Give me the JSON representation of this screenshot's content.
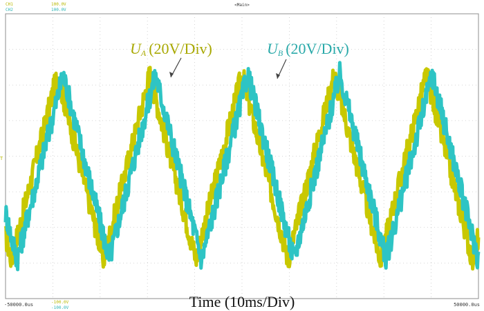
{
  "header": {
    "ch1_label": "CH1",
    "ch2_label": "CH2",
    "ch1_scale": "100.0V",
    "ch2_scale": "100.0V",
    "main_label": "<Main>"
  },
  "footer": {
    "left_time": "-50000.0us",
    "right_time": "50000.0us",
    "ch1_min": "-100.0V",
    "ch2_min": "-100.0V",
    "time_label": "Time (10ms/Div)"
  },
  "annotations": {
    "ua_symbol": "U",
    "ua_sub": "A",
    "ua_scale": "(20V/Div)",
    "ub_symbol": "U",
    "ub_sub": "B",
    "ub_scale": "(20V/Div)"
  },
  "trigger_marker": "T",
  "colors": {
    "ua": "#c8c800",
    "ub": "#2ec4c4",
    "grid": "#c8c8c8",
    "border": "#8c8c8c",
    "header_ch1": "#c8c800",
    "header_ch2": "#2ec4c4"
  },
  "chart_data": {
    "type": "line",
    "title": "",
    "xlabel": "Time (10ms/Div)",
    "ylabel": "",
    "x_range_us": [
      -50000,
      50000
    ],
    "x_divisions": 10,
    "y_divisions": 8,
    "series": [
      {
        "name": "U_A (20V/Div)",
        "shape": "triangle",
        "period_div": 1.95,
        "peak_div": 2.3,
        "trough_div": -2.9,
        "first_peak_div": 1.1,
        "ripple_div": 0.35
      },
      {
        "name": "U_B (20V/Div)",
        "shape": "triangle",
        "period_div": 1.95,
        "peak_div": 2.3,
        "trough_div": -2.9,
        "first_peak_div": 1.22,
        "ripple_div": 0.35
      }
    ]
  }
}
